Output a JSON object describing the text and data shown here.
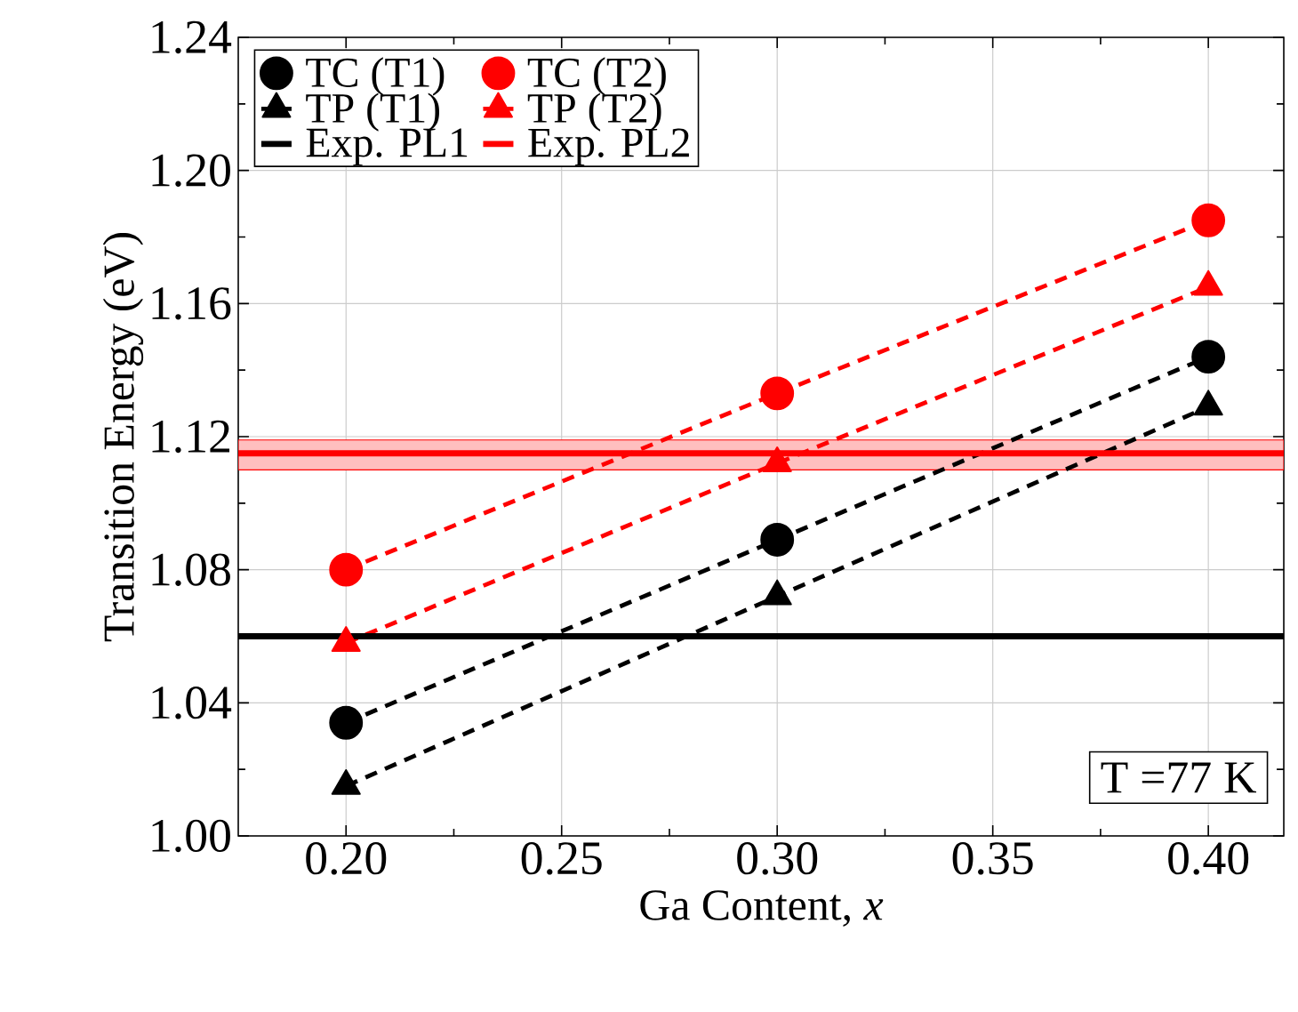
{
  "chart_data": {
    "type": "line",
    "xlabel": "Ga Content, *x*",
    "ylabel": "Transition Energy (eV)",
    "x": [
      0.2,
      0.3,
      0.4
    ],
    "series": [
      {
        "name": "TC (T1)",
        "color": "#000000",
        "marker": "circle",
        "line_style": "dashed",
        "values": [
          1.034,
          1.089,
          1.144
        ]
      },
      {
        "name": "TC (T2)",
        "color": "#ff0000",
        "marker": "circle",
        "line_style": "dashed",
        "values": [
          1.08,
          1.133,
          1.185
        ]
      },
      {
        "name": "TP (T1)",
        "color": "#000000",
        "marker": "triangle",
        "line_style": "dashed",
        "values": [
          1.015,
          1.072,
          1.129
        ]
      },
      {
        "name": "TP (T2)",
        "color": "#ff0000",
        "marker": "triangle",
        "line_style": "dashed",
        "values": [
          1.058,
          1.112,
          1.165
        ]
      }
    ],
    "ref_lines": [
      {
        "axis": "y",
        "value": 1.06,
        "label": "Exp. PL1",
        "color": "#000000",
        "line_style": "solid"
      },
      {
        "axis": "y",
        "value": 1.115,
        "label": "Exp. PL2",
        "color": "#ff0000",
        "line_style": "solid"
      }
    ],
    "bands": [
      {
        "axis": "y",
        "from": 1.11,
        "to": 1.119,
        "color": "#ff0000"
      }
    ],
    "xlim": [
      0.175,
      0.4175
    ],
    "xticks": [
      {
        "value": 0.2,
        "label": "0.20"
      },
      {
        "value": 0.25,
        "label": "0.25"
      },
      {
        "value": 0.3,
        "label": "0.30"
      },
      {
        "value": 0.35,
        "label": "0.35"
      },
      {
        "value": 0.4,
        "label": "0.40"
      }
    ],
    "ylim": [
      1.0,
      1.24
    ],
    "yticks": [
      {
        "value": 1.0,
        "label": "1.00"
      },
      {
        "value": 1.04,
        "label": "1.04"
      },
      {
        "value": 1.08,
        "label": "1.08"
      },
      {
        "value": 1.12,
        "label": "1.12"
      },
      {
        "value": 1.16,
        "label": "1.16"
      },
      {
        "value": 1.2,
        "label": "1.20"
      },
      {
        "value": 1.24,
        "label": "1.24"
      }
    ],
    "grid": true,
    "legend": "top left",
    "annotations": [
      "T =77 K"
    ]
  }
}
